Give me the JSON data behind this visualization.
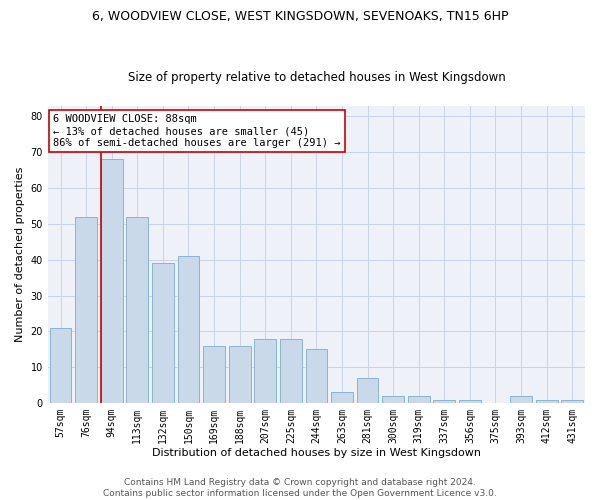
{
  "title1": "6, WOODVIEW CLOSE, WEST KINGSDOWN, SEVENOAKS, TN15 6HP",
  "title2": "Size of property relative to detached houses in West Kingsdown",
  "xlabel": "Distribution of detached houses by size in West Kingsdown",
  "ylabel": "Number of detached properties",
  "categories": [
    "57sqm",
    "76sqm",
    "94sqm",
    "113sqm",
    "132sqm",
    "150sqm",
    "169sqm",
    "188sqm",
    "207sqm",
    "225sqm",
    "244sqm",
    "263sqm",
    "281sqm",
    "300sqm",
    "319sqm",
    "337sqm",
    "356sqm",
    "375sqm",
    "393sqm",
    "412sqm",
    "431sqm"
  ],
  "values": [
    21,
    52,
    68,
    52,
    39,
    41,
    16,
    16,
    18,
    18,
    15,
    3,
    7,
    2,
    2,
    1,
    1,
    0,
    2,
    1,
    1
  ],
  "bar_color": "#c9d9ea",
  "bar_edge_color": "#8ab4d4",
  "grid_color": "#c8d4e8",
  "background_color": "#eef2f8",
  "vline_color": "#cc0000",
  "annotation_text": "6 WOODVIEW CLOSE: 88sqm\n← 13% of detached houses are smaller (45)\n86% of semi-detached houses are larger (291) →",
  "annotation_box_color": "#ffffff",
  "annotation_box_edge": "#cc0000",
  "ylim": [
    0,
    83
  ],
  "yticks": [
    0,
    10,
    20,
    30,
    40,
    50,
    60,
    70,
    80
  ],
  "footer": "Contains HM Land Registry data © Crown copyright and database right 2024.\nContains public sector information licensed under the Open Government Licence v3.0.",
  "title1_fontsize": 9,
  "title2_fontsize": 8.5,
  "xlabel_fontsize": 8,
  "ylabel_fontsize": 8,
  "tick_fontsize": 7,
  "annotation_fontsize": 7.5,
  "footer_fontsize": 6.5
}
